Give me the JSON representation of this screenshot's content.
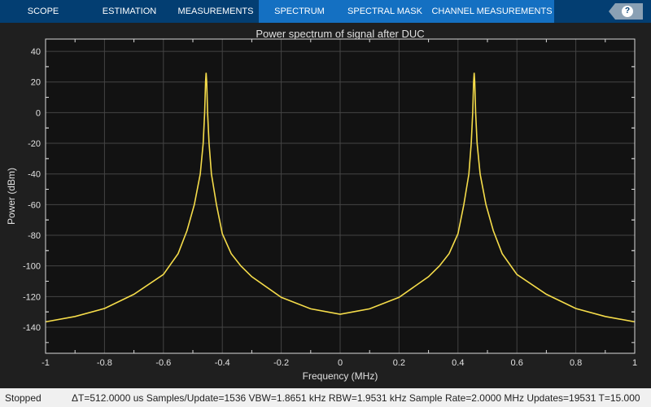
{
  "tabs": [
    {
      "label": "SCOPE",
      "active": false
    },
    {
      "label": "ESTIMATION",
      "active": false
    },
    {
      "label": "MEASUREMENTS",
      "active": false
    },
    {
      "label": "SPECTRUM",
      "active": true
    },
    {
      "label": "SPECTRAL MASK",
      "active": true
    },
    {
      "label": "CHANNEL MEASUREMENTS",
      "active": true
    }
  ],
  "help_label": "?",
  "status": {
    "state": "Stopped",
    "info": "ΔT=512.0000 us  Samples/Update=1536  VBW=1.8651 kHz  RBW=1.9531 kHz  Sample Rate=2.0000 MHz  Updates=19531  T=15.000"
  },
  "colors": {
    "trace": "#f5dc4a",
    "plot_bg": "#121212",
    "grid": "#444444",
    "tab_bar": "#033e72",
    "tab_active": "#1470c2"
  },
  "chart_data": {
    "type": "line",
    "title": "Power spectrum of signal after DUC",
    "xlabel": "Frequency (MHz)",
    "ylabel": "Power (dBm)",
    "xlim": [
      -1,
      1
    ],
    "ylim": [
      -157,
      48
    ],
    "xticks": [
      -1,
      -0.8,
      -0.6,
      -0.4,
      -0.2,
      0,
      0.2,
      0.4,
      0.6,
      0.8,
      1
    ],
    "yticks": [
      -140,
      -120,
      -100,
      -80,
      -60,
      -40,
      -20,
      0,
      20,
      40
    ],
    "grid": true,
    "series": [
      {
        "x": [
          -1,
          -0.9,
          -0.8,
          -0.7,
          -0.6,
          -0.55,
          -0.52,
          -0.495,
          -0.475,
          -0.465,
          -0.46,
          -0.457,
          -0.455,
          -0.453,
          -0.45,
          -0.445,
          -0.437,
          -0.42,
          -0.4,
          -0.37,
          -0.337,
          -0.3,
          -0.2,
          -0.1,
          0,
          0.1,
          0.2,
          0.3,
          0.337,
          0.37,
          0.4,
          0.42,
          0.437,
          0.445,
          0.45,
          0.453,
          0.455,
          0.457,
          0.46,
          0.465,
          0.475,
          0.495,
          0.52,
          0.55,
          0.6,
          0.7,
          0.8,
          0.9,
          1
        ],
        "y": [
          -136.5,
          -133,
          -127.8,
          -118.5,
          -105.6,
          -92,
          -77,
          -60,
          -40,
          -20,
          0,
          20,
          26,
          20,
          0,
          -20,
          -40,
          -60,
          -79,
          -92,
          -100,
          -107,
          -120.5,
          -128,
          -131.5,
          -128,
          -120.5,
          -107,
          -100,
          -92,
          -79,
          -60,
          -40,
          -20,
          0,
          20,
          26,
          20,
          0,
          -20,
          -40,
          -60,
          -77,
          -92,
          -105.6,
          -118.5,
          -127.8,
          -133,
          -136.5
        ]
      }
    ]
  }
}
